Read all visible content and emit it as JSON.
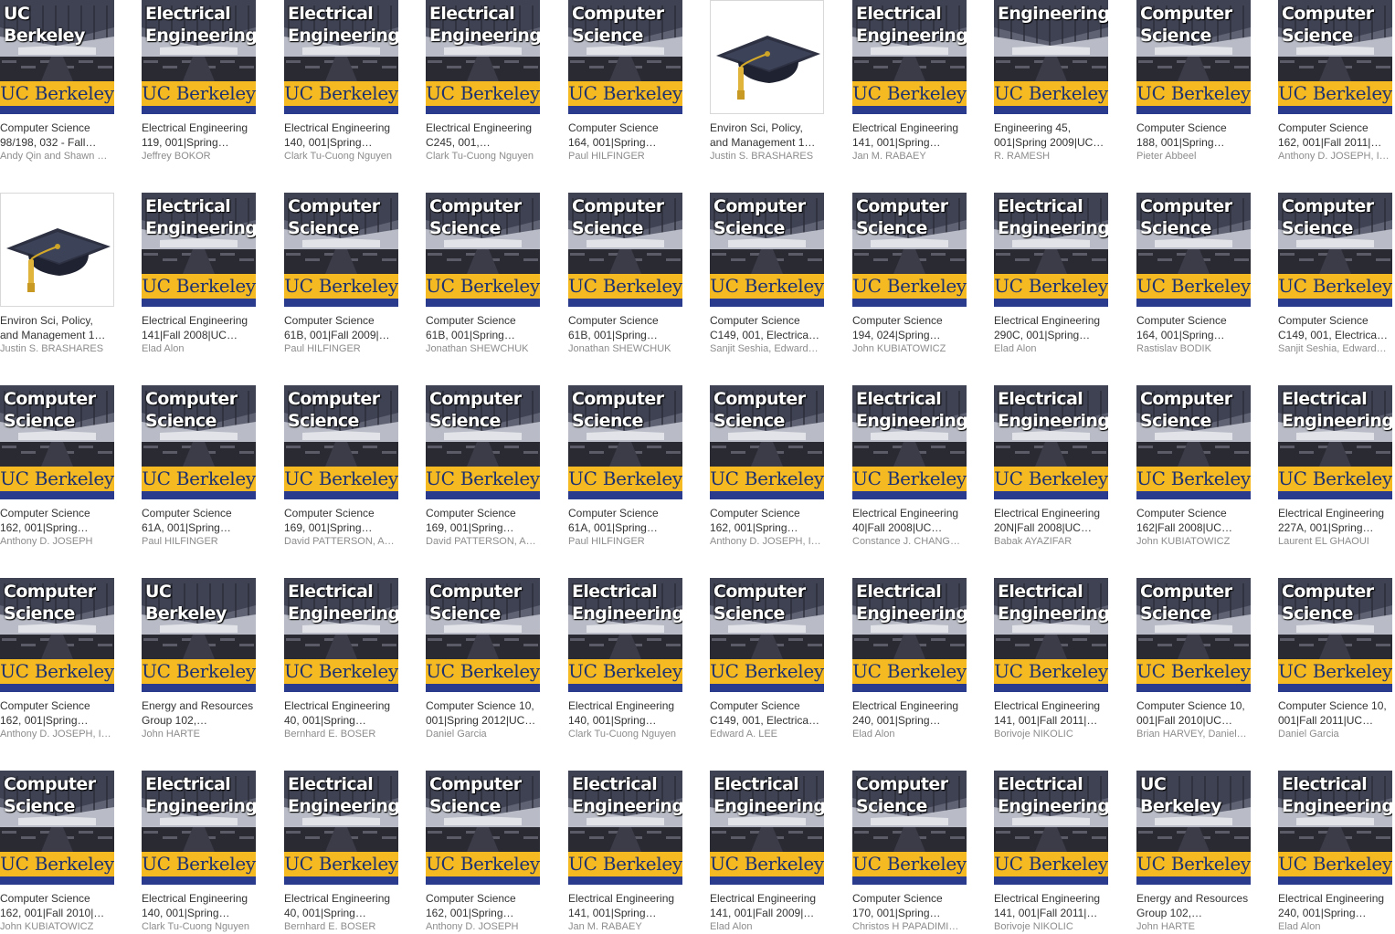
{
  "brand_label": "UC Berkeley",
  "colors": {
    "band": "#f5b922",
    "band_text": "#1e3270",
    "strip": "#2a3a8c",
    "title_text": "#333333",
    "author_text": "#8c8c8c"
  },
  "items": [
    {
      "cover": "UC Berkeley",
      "art": "hall",
      "line1": "Computer Science",
      "line2": "98/198, 032 - Fall…",
      "author": "Andy Qin and Shawn …"
    },
    {
      "cover": "Electrical\nEngineering",
      "art": "hall",
      "line1": "Electrical Engineering",
      "line2": "119, 001|Spring…",
      "author": "Jeffrey BOKOR"
    },
    {
      "cover": "Electrical\nEngineering",
      "art": "hall",
      "line1": "Electrical Engineering",
      "line2": "140, 001|Spring…",
      "author": "Clark Tu-Cuong Nguyen"
    },
    {
      "cover": "Electrical\nEngineering",
      "art": "hall",
      "line1": "Electrical Engineering",
      "line2": "C245, 001,…",
      "author": "Clark Tu-Cuong Nguyen"
    },
    {
      "cover": "Computer\nScience",
      "art": "hall",
      "line1": "Computer Science",
      "line2": "164, 001|Spring…",
      "author": "Paul HILFINGER"
    },
    {
      "cover": "",
      "art": "graduation-cap",
      "line1": "Environ Sci, Policy,",
      "line2": "and Management 1…",
      "author": "Justin S. BRASHARES"
    },
    {
      "cover": "Electrical\nEngineering",
      "art": "hall",
      "line1": "Electrical Engineering",
      "line2": "141, 001|Spring…",
      "author": "Jan M. RABAEY"
    },
    {
      "cover": "Engineering",
      "art": "hall",
      "line1": "Engineering 45,",
      "line2": "001|Spring 2009|UC…",
      "author": "R. RAMESH"
    },
    {
      "cover": "Computer\nScience",
      "art": "hall",
      "line1": "Computer Science",
      "line2": "188, 001|Spring…",
      "author": "Pieter Abbeel"
    },
    {
      "cover": "Computer\nScience",
      "art": "hall",
      "line1": "Computer Science",
      "line2": "162, 001|Fall 2011|…",
      "author": "Anthony D. JOSEPH, I…"
    },
    {
      "cover": "",
      "art": "graduation-cap",
      "line1": "Environ Sci, Policy,",
      "line2": "and Management 1…",
      "author": "Justin S. BRASHARES"
    },
    {
      "cover": "Electrical\nEngineering",
      "art": "hall",
      "line1": "Electrical Engineering",
      "line2": "141|Fall 2008|UC…",
      "author": "Elad Alon"
    },
    {
      "cover": "Computer\nScience",
      "art": "hall",
      "line1": "Computer Science",
      "line2": "61B, 001|Fall 2009|…",
      "author": "Paul HILFINGER"
    },
    {
      "cover": "Computer\nScience",
      "art": "hall",
      "line1": "Computer Science",
      "line2": "61B, 001|Spring…",
      "author": "Jonathan SHEWCHUK"
    },
    {
      "cover": "Computer\nScience",
      "art": "hall",
      "line1": "Computer Science",
      "line2": "61B, 001|Spring…",
      "author": "Jonathan SHEWCHUK"
    },
    {
      "cover": "Computer\nScience",
      "art": "hall",
      "line1": "Computer Science",
      "line2": "C149, 001, Electrica…",
      "author": "Sanjit Seshia, Edward…"
    },
    {
      "cover": "Computer\nScience",
      "art": "hall",
      "line1": "Computer Science",
      "line2": "194, 024|Spring…",
      "author": "John KUBIATOWICZ"
    },
    {
      "cover": "Electrical\nEngineering",
      "art": "hall",
      "line1": "Electrical Engineering",
      "line2": "290C, 001|Spring…",
      "author": "Elad Alon"
    },
    {
      "cover": "Computer\nScience",
      "art": "hall",
      "line1": "Computer Science",
      "line2": "164, 001|Spring…",
      "author": "Rastislav BODIK"
    },
    {
      "cover": "Computer\nScience",
      "art": "hall",
      "line1": "Computer Science",
      "line2": "C149, 001, Electrica…",
      "author": "Sanjit Seshia, Edward…"
    },
    {
      "cover": "Computer\nScience",
      "art": "hall",
      "line1": "Computer Science",
      "line2": "162, 001|Spring…",
      "author": "Anthony D. JOSEPH"
    },
    {
      "cover": "Computer\nScience",
      "art": "hall",
      "line1": "Computer Science",
      "line2": "61A, 001|Spring…",
      "author": "Paul HILFINGER"
    },
    {
      "cover": "Computer\nScience",
      "art": "hall",
      "line1": "Computer Science",
      "line2": "169, 001|Spring…",
      "author": "David PATTERSON, A…"
    },
    {
      "cover": "Computer\nScience",
      "art": "hall",
      "line1": "Computer Science",
      "line2": "169, 001|Spring…",
      "author": "David PATTERSON, A…"
    },
    {
      "cover": "Computer\nScience",
      "art": "hall",
      "line1": "Computer Science",
      "line2": "61A, 001|Spring…",
      "author": "Paul HILFINGER"
    },
    {
      "cover": "Computer\nScience",
      "art": "hall",
      "line1": "Computer Science",
      "line2": "162, 001|Spring…",
      "author": "Anthony D. JOSEPH, I…"
    },
    {
      "cover": "Electrical\nEngineering",
      "art": "hall",
      "line1": "Electrical Engineering",
      "line2": "40|Fall 2008|UC…",
      "author": "Constance J. CHANG…"
    },
    {
      "cover": "Electrical\nEngineering",
      "art": "hall",
      "line1": "Electrical Engineering",
      "line2": "20N|Fall 2008|UC…",
      "author": "Babak AYAZIFAR"
    },
    {
      "cover": "Computer\nScience",
      "art": "hall",
      "line1": "Computer Science",
      "line2": "162|Fall 2008|UC…",
      "author": "John KUBIATOWICZ"
    },
    {
      "cover": "Electrical\nEngineering",
      "art": "hall",
      "line1": "Electrical Engineering",
      "line2": "227A, 001|Spring…",
      "author": "Laurent EL GHAOUI"
    },
    {
      "cover": "Computer\nScience",
      "art": "hall",
      "line1": "Computer Science",
      "line2": "162, 001|Spring…",
      "author": "Anthony D. JOSEPH, I…"
    },
    {
      "cover": "UC Berkeley",
      "art": "hall",
      "line1": "Energy and Resources",
      "line2": "Group 102,…",
      "author": "John HARTE"
    },
    {
      "cover": "Electrical\nEngineering",
      "art": "hall",
      "line1": "Electrical Engineering",
      "line2": "40, 001|Spring…",
      "author": "Bernhard E. BOSER"
    },
    {
      "cover": "Computer\nScience",
      "art": "hall",
      "line1": "Computer Science 10,",
      "line2": "001|Spring 2012|UC…",
      "author": "Daniel Garcia"
    },
    {
      "cover": "Electrical\nEngineering",
      "art": "hall",
      "line1": "Electrical Engineering",
      "line2": "140, 001|Spring…",
      "author": "Clark Tu-Cuong Nguyen"
    },
    {
      "cover": "Computer\nScience",
      "art": "hall",
      "line1": "Computer Science",
      "line2": "C149, 001, Electrica…",
      "author": "Edward A. LEE"
    },
    {
      "cover": "Electrical\nEngineering",
      "art": "hall",
      "line1": "Electrical Engineering",
      "line2": "240, 001|Spring…",
      "author": "Elad Alon"
    },
    {
      "cover": "Electrical\nEngineering",
      "art": "hall",
      "line1": "Electrical Engineering",
      "line2": "141, 001|Fall 2011|…",
      "author": "Borivoje NIKOLIC"
    },
    {
      "cover": "Computer\nScience",
      "art": "hall",
      "line1": "Computer Science 10,",
      "line2": "001|Fall 2010|UC…",
      "author": "Brian HARVEY, Daniel…"
    },
    {
      "cover": "Computer\nScience",
      "art": "hall",
      "line1": "Computer Science 10,",
      "line2": "001|Fall 2011|UC…",
      "author": "Daniel Garcia"
    },
    {
      "cover": "Computer\nScience",
      "art": "hall",
      "line1": "Computer Science",
      "line2": "162, 001|Fall 2010|…",
      "author": "John KUBIATOWICZ"
    },
    {
      "cover": "Electrical\nEngineering",
      "art": "hall",
      "line1": "Electrical Engineering",
      "line2": "140, 001|Spring…",
      "author": "Clark Tu-Cuong Nguyen"
    },
    {
      "cover": "Electrical\nEngineering",
      "art": "hall",
      "line1": "Electrical Engineering",
      "line2": "40, 001|Spring…",
      "author": "Bernhard E. BOSER"
    },
    {
      "cover": "Computer\nScience",
      "art": "hall",
      "line1": "Computer Science",
      "line2": "162, 001|Spring…",
      "author": "Anthony D. JOSEPH"
    },
    {
      "cover": "Electrical\nEngineering",
      "art": "hall",
      "line1": "Electrical Engineering",
      "line2": "141, 001|Spring…",
      "author": "Jan M. RABAEY"
    },
    {
      "cover": "Electrical\nEngineering",
      "art": "hall",
      "line1": "Electrical Engineering",
      "line2": "141, 001|Fall 2009|…",
      "author": "Elad Alon"
    },
    {
      "cover": "Computer\nScience",
      "art": "hall",
      "line1": "Computer Science",
      "line2": "170, 001|Spring…",
      "author": "Christos H PAPADIMI…"
    },
    {
      "cover": "Electrical\nEngineering",
      "art": "hall",
      "line1": "Electrical Engineering",
      "line2": "141, 001|Fall 2011|…",
      "author": "Borivoje NIKOLIC"
    },
    {
      "cover": "UC Berkeley",
      "art": "hall",
      "line1": "Energy and Resources",
      "line2": "Group 102,…",
      "author": "John HARTE"
    },
    {
      "cover": "Electrical\nEngineering",
      "art": "hall",
      "line1": "Electrical Engineering",
      "line2": "240, 001|Spring…",
      "author": "Elad Alon"
    }
  ]
}
